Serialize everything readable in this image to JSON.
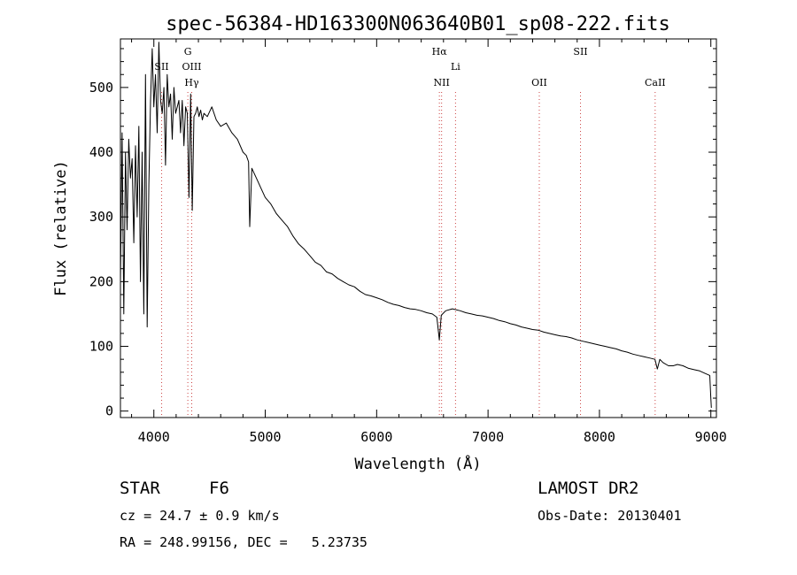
{
  "chart_data": {
    "type": "line",
    "title": "spec-56384-HD163300N063640B01_sp08-222.fits",
    "xlabel": "Wavelength (Å)",
    "ylabel": "Flux (relative)",
    "xlim": [
      3700,
      9050
    ],
    "ylim": [
      -10,
      575
    ],
    "xticks": [
      4000,
      5000,
      6000,
      7000,
      8000,
      9000
    ],
    "yticks": [
      0,
      100,
      200,
      300,
      400,
      500
    ],
    "series": [
      {
        "name": "flux",
        "x": [
          3700,
          3715,
          3730,
          3745,
          3760,
          3775,
          3790,
          3805,
          3820,
          3835,
          3850,
          3865,
          3880,
          3895,
          3910,
          3925,
          3940,
          3955,
          3970,
          3985,
          4000,
          4015,
          4030,
          4045,
          4060,
          4075,
          4090,
          4105,
          4120,
          4135,
          4150,
          4165,
          4180,
          4195,
          4210,
          4225,
          4240,
          4255,
          4270,
          4285,
          4300,
          4315,
          4330,
          4345,
          4360,
          4375,
          4390,
          4405,
          4420,
          4435,
          4450,
          4480,
          4520,
          4560,
          4600,
          4650,
          4700,
          4750,
          4800,
          4830,
          4850,
          4861,
          4880,
          4920,
          4960,
          5000,
          5050,
          5100,
          5150,
          5200,
          5250,
          5300,
          5350,
          5400,
          5450,
          5500,
          5550,
          5600,
          5650,
          5700,
          5750,
          5800,
          5850,
          5900,
          5950,
          6000,
          6050,
          6100,
          6150,
          6200,
          6250,
          6300,
          6350,
          6400,
          6450,
          6500,
          6540,
          6563,
          6580,
          6620,
          6680,
          6750,
          6800,
          6850,
          6900,
          6950,
          7000,
          7050,
          7100,
          7150,
          7200,
          7250,
          7300,
          7350,
          7400,
          7450,
          7500,
          7550,
          7600,
          7650,
          7700,
          7750,
          7800,
          7850,
          7900,
          7950,
          8000,
          8050,
          8100,
          8150,
          8200,
          8250,
          8300,
          8350,
          8400,
          8450,
          8498,
          8520,
          8542,
          8570,
          8620,
          8662,
          8700,
          8750,
          8800,
          8850,
          8900,
          8950,
          8990,
          9000,
          9005
        ],
        "values": [
          200,
          430,
          150,
          400,
          280,
          420,
          360,
          390,
          260,
          410,
          300,
          440,
          200,
          400,
          150,
          520,
          130,
          350,
          480,
          560,
          470,
          520,
          430,
          570,
          480,
          460,
          500,
          380,
          520,
          470,
          490,
          420,
          500,
          460,
          470,
          480,
          430,
          480,
          410,
          470,
          460,
          330,
          490,
          310,
          455,
          460,
          470,
          455,
          465,
          450,
          460,
          455,
          470,
          450,
          440,
          445,
          430,
          420,
          400,
          395,
          385,
          285,
          375,
          360,
          345,
          330,
          320,
          305,
          295,
          285,
          270,
          258,
          250,
          240,
          230,
          225,
          215,
          212,
          205,
          200,
          195,
          192,
          185,
          180,
          178,
          175,
          172,
          168,
          165,
          163,
          160,
          158,
          157,
          155,
          152,
          150,
          145,
          110,
          148,
          155,
          158,
          155,
          152,
          150,
          148,
          147,
          145,
          143,
          140,
          138,
          135,
          133,
          130,
          128,
          126,
          125,
          122,
          120,
          118,
          116,
          115,
          113,
          110,
          108,
          106,
          104,
          102,
          100,
          98,
          96,
          93,
          91,
          88,
          86,
          84,
          82,
          80,
          65,
          80,
          75,
          70,
          70,
          72,
          70,
          66,
          64,
          62,
          58,
          55,
          20,
          5
        ]
      }
    ],
    "spectral_lines": [
      {
        "name": "SII",
        "x": 4070,
        "label_row": 2
      },
      {
        "name": "G",
        "x": 4305,
        "label_row": 1
      },
      {
        "name": "OIII",
        "x": 4340,
        "label_row": 2
      },
      {
        "name": "Hγ",
        "x": 4340,
        "label_row": 3
      },
      {
        "name": "Hα",
        "x": 6563,
        "label_row": 1
      },
      {
        "name": "Li",
        "x": 6708,
        "label_row": 2
      },
      {
        "name": "NII",
        "x": 6583,
        "label_row": 3
      },
      {
        "name": "OII",
        "x": 7460,
        "label_row": 3
      },
      {
        "name": "SII",
        "x": 7830,
        "label_row": 1
      },
      {
        "name": "CaII",
        "x": 8500,
        "label_row": 3
      }
    ]
  },
  "info": {
    "object_class": "STAR",
    "subclass": "F6",
    "survey": "LAMOST DR2",
    "redshift_text": "cz = 24.7 ± 0.9 km/s",
    "obs_date_text": "Obs-Date: 20130401",
    "coords_text": "RA = 248.99156, DEC =   5.23735"
  }
}
